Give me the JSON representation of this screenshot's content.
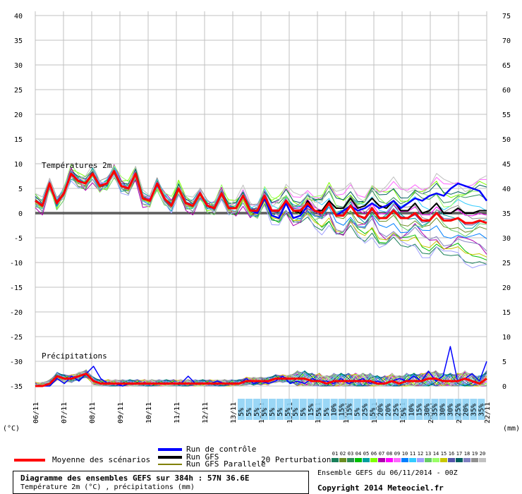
{
  "chart_data": {
    "type": "line",
    "temp_section_label": "Températures 2m",
    "precip_section_label": "Précipitations",
    "left_axis": {
      "ticks": [
        40,
        35,
        30,
        25,
        20,
        15,
        10,
        5,
        0,
        -5,
        -10,
        -15,
        -20,
        -25,
        -30,
        -35
      ],
      "unit_label": "(°C)"
    },
    "right_axis": {
      "ticks": [
        75,
        70,
        65,
        60,
        55,
        50,
        45,
        40,
        35,
        30,
        25,
        20,
        15,
        10,
        5,
        0
      ],
      "unit_label": "(mm)"
    },
    "x_ticks": [
      "06/11",
      "07/11",
      "08/11",
      "09/11",
      "10/11",
      "11/11",
      "12/11",
      "13/11",
      "14/11",
      "15/11",
      "16/11",
      "17/11",
      "18/11",
      "19/11",
      "20/11",
      "21/11",
      "22/11"
    ],
    "snow_labels": [
      "5%",
      "5%",
      "5%",
      "5%",
      "5%",
      "5%",
      "5%",
      "5%",
      "5%",
      "15%",
      "5%",
      "5%",
      "10%",
      "15%",
      "15%",
      "5%",
      "25%",
      "5%",
      "20%",
      "20%",
      "25%",
      "5%",
      "10%",
      "15%",
      "30%",
      "35%",
      "30%",
      "30%",
      "25%",
      "20%",
      "35%",
      "35%"
    ],
    "mean_series": [
      2.5,
      1.5,
      6,
      2,
      4,
      8,
      6.5,
      6,
      8,
      5.5,
      6,
      8.5,
      5.5,
      5,
      8,
      3,
      2.5,
      6,
      3,
      1.5,
      5,
      2,
      1.5,
      4,
      1.5,
      1,
      4,
      1,
      1,
      3.5,
      0.5,
      0.5,
      3.5,
      0.5,
      0.5,
      2.5,
      0.5,
      0.5,
      2,
      0.5,
      0,
      2,
      -0.5,
      -0.5,
      1.5,
      -0.5,
      -1,
      1,
      -1,
      -1,
      0.5,
      -1,
      -1,
      0,
      -1.5,
      -1.5,
      0,
      -1.5,
      -1.5,
      -1,
      -2,
      -2,
      -1.5,
      -2
    ],
    "control_series": [
      2.5,
      1.5,
      6,
      2,
      4,
      8,
      6.5,
      6,
      8,
      5.5,
      6,
      8.5,
      5.5,
      5,
      8,
      3,
      2.5,
      6,
      3,
      1.5,
      5,
      2,
      1.5,
      4,
      1.5,
      1,
      4,
      1,
      1,
      3.5,
      0.5,
      0,
      3,
      -0.5,
      -1,
      2,
      -1,
      -0.5,
      1.5,
      0.5,
      0,
      2,
      -0.5,
      0.5,
      1.5,
      0.5,
      1,
      2,
      1,
      1.5,
      2.5,
      1,
      2,
      3,
      2.5,
      3.5,
      4,
      3.5,
      5,
      6,
      5.5,
      5,
      4.5,
      2.5
    ],
    "gfs_series": [
      2.5,
      1.5,
      6,
      2,
      4,
      8,
      6.5,
      6,
      8,
      5.5,
      6,
      8.5,
      5.5,
      5,
      8,
      3,
      2.5,
      6,
      3,
      1.5,
      5,
      2,
      1.5,
      4,
      1.5,
      1,
      4,
      1,
      1,
      3.5,
      0.5,
      0.5,
      3.5,
      0.5,
      0.5,
      2.5,
      0.5,
      0,
      2.5,
      0.5,
      0.5,
      2.5,
      1,
      1,
      3,
      1,
      1.5,
      3,
      1.5,
      1,
      2.5,
      0.5,
      0.5,
      2,
      0,
      0.5,
      2,
      0,
      0,
      1,
      0,
      0,
      0.5,
      0.5
    ],
    "precip_mean_mm": [
      0,
      0,
      0.5,
      2,
      1.5,
      1.5,
      2,
      2.5,
      1,
      0.5,
      0.5,
      0.5,
      0.5,
      0.5,
      0.5,
      0.5,
      0.5,
      0.5,
      0.5,
      0.5,
      0.5,
      0.5,
      0.5,
      0.5,
      0.5,
      0.5,
      0.5,
      0.5,
      0.5,
      1,
      1,
      1,
      1,
      1.5,
      1.5,
      1.5,
      1.5,
      1.5,
      1,
      1,
      0.5,
      1,
      1,
      1,
      1,
      1,
      1,
      0.5,
      0.5,
      1,
      0.5,
      1,
      1,
      1,
      1.5,
      1.5,
      1,
      1,
      1,
      1.5,
      1,
      0.5,
      1.5
    ],
    "precip_control_mm": [
      0,
      0,
      0,
      1.5,
      0.5,
      2,
      1,
      2.5,
      4,
      1.5,
      0.5,
      0.5,
      0,
      0.5,
      0.5,
      0.5,
      0.5,
      0.5,
      0.5,
      0.5,
      0.5,
      2,
      0.5,
      0.5,
      0.5,
      1,
      0.5,
      0.5,
      0.5,
      1.5,
      0.5,
      1,
      0.5,
      1,
      2,
      0.5,
      1,
      0.5,
      1.5,
      1,
      1,
      0.5,
      1.5,
      0.5,
      1,
      1.5,
      0.5,
      1,
      0.5,
      1,
      1.5,
      1,
      2,
      1,
      3,
      1,
      2,
      8,
      1,
      1.5,
      2.5,
      1,
      5
    ]
  },
  "legend": {
    "mean_label": "Moyenne des scénarios",
    "control_label": "Run de contrôle",
    "gfs_label": "Run GFS",
    "gfs_parallel_label": "Run GFS Parallele",
    "perturbations_label": "20 Perturbations",
    "perturbation_numbers": [
      "01",
      "02",
      "03",
      "04",
      "05",
      "06",
      "07",
      "08",
      "09",
      "10",
      "11",
      "12",
      "13",
      "14",
      "15",
      "16",
      "17",
      "18",
      "19",
      "20"
    ],
    "perturbation_colors": [
      "#1a7f5a",
      "#6b8e23",
      "#2e8b57",
      "#00c000",
      "#00a0a0",
      "#7fff00",
      "#b000b0",
      "#ff00ff",
      "#ff66ff",
      "#0080ff",
      "#33ccff",
      "#a0a0ff",
      "#66cc66",
      "#99ff66",
      "#c8c800",
      "#5555aa",
      "#006060",
      "#8080c0",
      "#909090",
      "#c0c0c0"
    ]
  },
  "footer": {
    "title": "Diagramme des ensembles GEFS sur 384h : 57N 36.6E",
    "subtitle": "Température 2m (°C) , précipitations (mm)",
    "run_info": "Ensemble GEFS du 06/11/2014 - 00Z",
    "copyright": "Copyright 2014 Meteociel.fr"
  },
  "colors": {
    "mean": "#ff0000",
    "control": "#0000ff",
    "gfs": "#000000",
    "gfs_parallel": "#808000",
    "grid": "#c0c0c0",
    "snow": "#8fd3f5"
  }
}
